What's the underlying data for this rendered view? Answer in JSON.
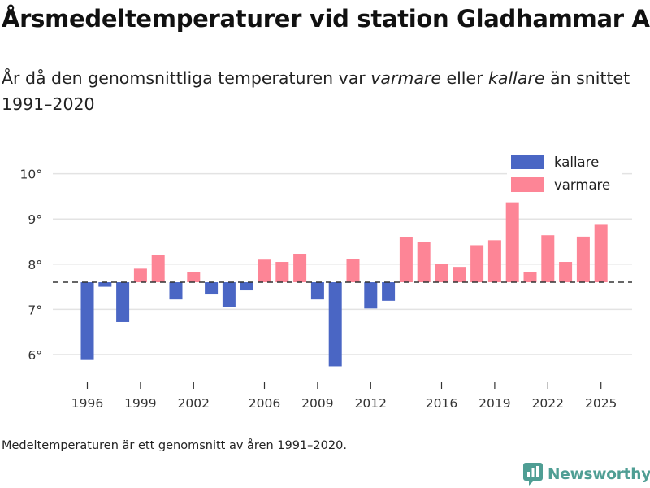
{
  "header": {
    "title": "Årsmedeltemperaturer vid station Gladhammar A",
    "subtitle_parts": {
      "lead": "År då den genomsnittliga temperaturen var ",
      "warmer": "varmare",
      "middle": " eller ",
      "colder": "kallare",
      "tail": " än snittet 1991–2020"
    }
  },
  "footnote": "Medeltemperaturen är ett genomsnitt av åren 1991–2020.",
  "brand": {
    "name": "Newsworthy",
    "icon": "newsworthy-logo-icon"
  },
  "colors": {
    "kallare": "#4a66c4",
    "varmare": "#fd8596",
    "baseline": "#333333",
    "grid": "#e3e3e3"
  },
  "chart_data": {
    "type": "bar",
    "title": "Årsmedeltemperaturer vid station Gladhammar A",
    "xlabel": "",
    "ylabel": "",
    "baseline": 7.6,
    "ylim": [
      5.5,
      10.5
    ],
    "yticks": [
      6,
      7,
      8,
      9,
      10
    ],
    "ytick_labels": [
      "6°",
      "7°",
      "8°",
      "9°",
      "10°"
    ],
    "xticks": [
      1996,
      1999,
      2002,
      2006,
      2009,
      2012,
      2016,
      2019,
      2022,
      2025
    ],
    "legend": {
      "position": "top-right",
      "labels": [
        "kallare",
        "varmare"
      ]
    },
    "series": [
      {
        "name": "Årsmedeltemperatur",
        "x": [
          1996,
          1997,
          1998,
          1999,
          2000,
          2001,
          2002,
          2003,
          2004,
          2005,
          2006,
          2007,
          2008,
          2009,
          2010,
          2011,
          2012,
          2013,
          2014,
          2015,
          2016,
          2017,
          2018,
          2019,
          2020,
          2021,
          2022,
          2023,
          2024,
          2025
        ],
        "values": [
          5.88,
          7.5,
          6.72,
          7.9,
          8.2,
          7.22,
          7.82,
          7.33,
          7.06,
          7.42,
          8.1,
          8.05,
          8.23,
          7.22,
          5.74,
          8.12,
          7.02,
          7.19,
          8.6,
          8.5,
          8.01,
          7.94,
          8.42,
          8.53,
          9.37,
          7.82,
          8.64,
          8.05,
          8.61,
          8.87
        ]
      }
    ]
  }
}
